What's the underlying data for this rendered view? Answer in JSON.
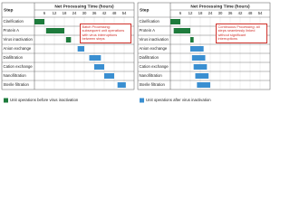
{
  "chart_data": [
    {
      "type": "gantt",
      "step_label": "Step",
      "title": "Net Processing Time (hours)",
      "categories": [
        "Clarification",
        "Protein A",
        "Virus inactivation",
        "Anion exchange",
        "Diafiltration",
        "Cation exchange",
        "Nanofiltration",
        "Sterile filtration"
      ],
      "xlim": [
        0,
        60
      ],
      "xticks": [
        6,
        12,
        18,
        24,
        30,
        36,
        42,
        48,
        54
      ],
      "series": [
        {
          "color": "#1e7b3c",
          "starts": [
            0,
            7,
            19,
            null,
            null,
            null,
            null,
            null
          ],
          "ends": [
            6,
            18,
            22,
            null,
            null,
            null,
            null,
            null
          ]
        },
        {
          "color": "#3a8fd1",
          "starts": [
            null,
            null,
            null,
            26,
            33,
            36,
            42,
            50
          ],
          "ends": [
            null,
            null,
            null,
            30,
            40,
            42,
            48,
            55
          ]
        }
      ],
      "annotation": "Batch Processing: subsequent unit operations with virus interruptions between steps"
    },
    {
      "type": "gantt",
      "step_label": "Step",
      "title": "Net Processing Time (hours)",
      "categories": [
        "Clarification",
        "Protein A",
        "Virus inactivation",
        "Anion exchange",
        "Diafiltration",
        "Cation exchange",
        "Nanofiltration",
        "Sterile filtration"
      ],
      "xlim": [
        0,
        60
      ],
      "xticks": [
        6,
        12,
        18,
        24,
        30,
        36,
        42,
        48,
        54
      ],
      "series": [
        {
          "color": "#1e7b3c",
          "starts": [
            0,
            2,
            12,
            null,
            null,
            null,
            null,
            null
          ],
          "ends": [
            6,
            12,
            14,
            null,
            null,
            null,
            null,
            null
          ]
        },
        {
          "color": "#3a8fd1",
          "starts": [
            null,
            null,
            null,
            12,
            13,
            14,
            15,
            16
          ],
          "ends": [
            null,
            null,
            null,
            20,
            21,
            22,
            23,
            24
          ]
        }
      ],
      "annotation": "Continuous Processing: all steps seamlessly linked without significant interruptions"
    }
  ],
  "legend": [
    {
      "name": "Unit operations before virus inactivation",
      "color": "#1e7b3c"
    },
    {
      "name": "Unit operations after virus inactivation",
      "color": "#3a8fd1"
    }
  ]
}
